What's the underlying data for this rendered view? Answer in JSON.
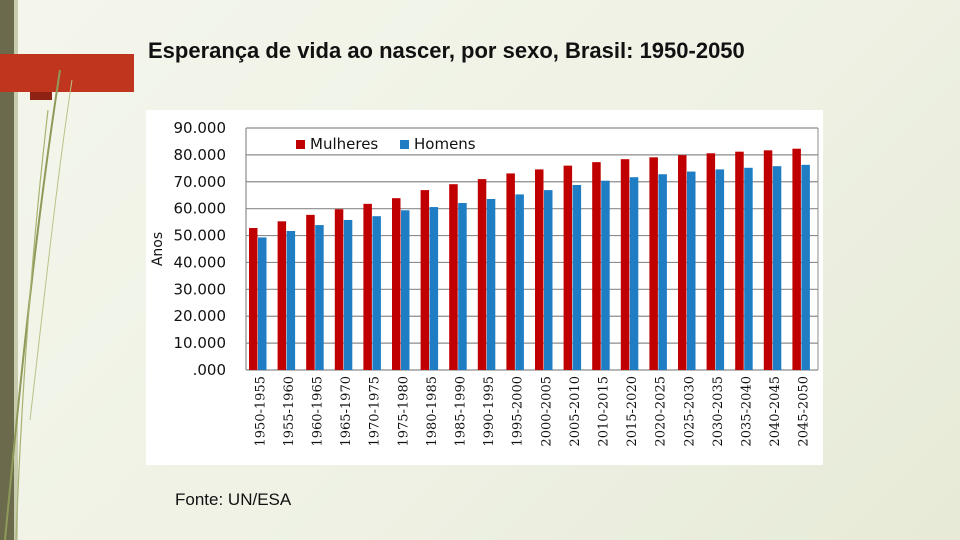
{
  "slide": {
    "title": "Esperança de vida ao nascer, por sexo, Brasil: 1950-2050",
    "source": "Fonte: UN/ESA"
  },
  "colors": {
    "mulheres": "#c00000",
    "homens": "#1f7dc4",
    "grid": "#8c8c8c",
    "accent": "#c0351e"
  },
  "chart_data": {
    "type": "bar",
    "ylabel": "Anos",
    "xlabel": "",
    "ylim": [
      0,
      90
    ],
    "yticks": [
      ".000",
      "10.000",
      "20.000",
      "30.000",
      "40.000",
      "50.000",
      "60.000",
      "70.000",
      "80.000",
      "90.000"
    ],
    "grid": true,
    "legend_position": "top",
    "categories": [
      "1950-1955",
      "1955-1960",
      "1960-1965",
      "1965-1970",
      "1970-1975",
      "1975-1980",
      "1980-1985",
      "1985-1990",
      "1990-1995",
      "1995-2000",
      "2000-2005",
      "2005-2010",
      "2010-2015",
      "2015-2020",
      "2020-2025",
      "2025-2030",
      "2030-2035",
      "2035-2040",
      "2040-2045",
      "2045-2050"
    ],
    "series": [
      {
        "name": "Mulheres",
        "values": [
          52.8,
          55.3,
          57.7,
          59.8,
          61.8,
          63.9,
          66.9,
          69.1,
          71.0,
          73.1,
          74.6,
          76.0,
          77.3,
          78.4,
          79.1,
          79.9,
          80.6,
          81.2,
          81.7,
          82.3
        ]
      },
      {
        "name": "Homens",
        "values": [
          49.3,
          51.7,
          53.9,
          55.8,
          57.2,
          59.4,
          60.6,
          62.1,
          63.6,
          65.3,
          66.9,
          68.8,
          70.4,
          71.7,
          72.8,
          73.8,
          74.6,
          75.2,
          75.8,
          76.3
        ]
      }
    ]
  }
}
